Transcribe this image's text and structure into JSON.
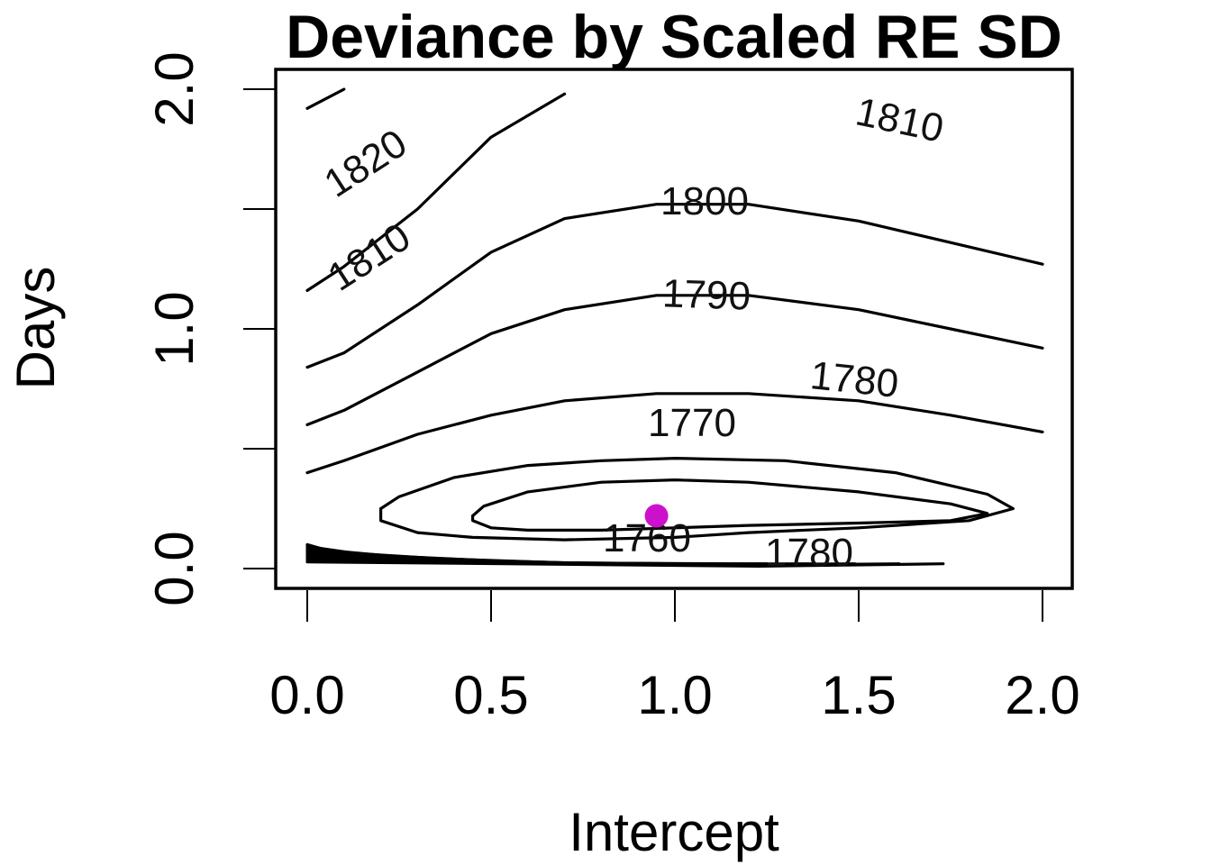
{
  "chart_data": {
    "type": "contour",
    "title": "Deviance by Scaled RE SD",
    "xlabel": "Intercept",
    "ylabel": "Days",
    "xlim": [
      0.0,
      2.0
    ],
    "ylim": [
      0.0,
      2.0
    ],
    "xticks": [
      "0.0",
      "0.5",
      "1.0",
      "1.5",
      "2.0"
    ],
    "yticks": [
      "0.0",
      "",
      "1.0",
      "",
      "2.0"
    ],
    "grid": false,
    "legend": "none",
    "minimum_point": {
      "x": 0.95,
      "y": 0.22,
      "color": "#cc11cc"
    },
    "contour_levels": [
      "1760",
      "1770",
      "1780",
      "1790",
      "1800",
      "1810",
      "1820"
    ],
    "contours": [
      {
        "level": "1760",
        "points": [
          [
            0.45,
            0.22
          ],
          [
            0.48,
            0.26
          ],
          [
            0.6,
            0.32
          ],
          [
            0.8,
            0.36
          ],
          [
            1.0,
            0.37
          ],
          [
            1.2,
            0.36
          ],
          [
            1.5,
            0.32
          ],
          [
            1.75,
            0.27
          ],
          [
            1.85,
            0.23
          ],
          [
            1.75,
            0.2
          ],
          [
            1.5,
            0.19
          ],
          [
            1.2,
            0.18
          ],
          [
            1.0,
            0.17
          ],
          [
            0.8,
            0.16
          ],
          [
            0.6,
            0.16
          ],
          [
            0.5,
            0.17
          ],
          [
            0.45,
            0.2
          ],
          [
            0.45,
            0.22
          ]
        ]
      },
      {
        "level": "1770",
        "points": [
          [
            0.2,
            0.25
          ],
          [
            0.25,
            0.3
          ],
          [
            0.4,
            0.38
          ],
          [
            0.6,
            0.43
          ],
          [
            0.8,
            0.45
          ],
          [
            1.0,
            0.46
          ],
          [
            1.3,
            0.45
          ],
          [
            1.6,
            0.4
          ],
          [
            1.85,
            0.31
          ],
          [
            1.92,
            0.25
          ],
          [
            1.8,
            0.2
          ],
          [
            1.5,
            0.17
          ],
          [
            1.2,
            0.15
          ],
          [
            1.0,
            0.13
          ],
          [
            0.7,
            0.12
          ],
          [
            0.45,
            0.13
          ],
          [
            0.3,
            0.15
          ],
          [
            0.2,
            0.2
          ],
          [
            0.2,
            0.25
          ]
        ]
      },
      {
        "level": "1780",
        "points": [
          [
            0.0,
            0.4
          ],
          [
            0.1,
            0.45
          ],
          [
            0.3,
            0.56
          ],
          [
            0.5,
            0.64
          ],
          [
            0.7,
            0.7
          ],
          [
            0.95,
            0.73
          ],
          [
            1.2,
            0.73
          ],
          [
            1.5,
            0.7
          ],
          [
            1.75,
            0.64
          ],
          [
            2.0,
            0.57
          ]
        ]
      },
      {
        "level": "1790",
        "points": [
          [
            0.0,
            0.6
          ],
          [
            0.1,
            0.66
          ],
          [
            0.3,
            0.82
          ],
          [
            0.5,
            0.98
          ],
          [
            0.7,
            1.08
          ],
          [
            0.95,
            1.14
          ],
          [
            1.2,
            1.14
          ],
          [
            1.5,
            1.08
          ],
          [
            1.75,
            1.0
          ],
          [
            2.0,
            0.92
          ]
        ]
      },
      {
        "level": "1800",
        "points": [
          [
            0.0,
            0.84
          ],
          [
            0.1,
            0.9
          ],
          [
            0.3,
            1.1
          ],
          [
            0.5,
            1.32
          ],
          [
            0.7,
            1.46
          ],
          [
            0.95,
            1.52
          ],
          [
            1.2,
            1.52
          ],
          [
            1.5,
            1.45
          ],
          [
            1.75,
            1.36
          ],
          [
            2.0,
            1.27
          ]
        ]
      },
      {
        "level": "1810",
        "points": [
          [
            0.0,
            1.16
          ],
          [
            0.1,
            1.26
          ],
          [
            0.3,
            1.5
          ],
          [
            0.5,
            1.8
          ],
          [
            0.7,
            1.98
          ]
        ]
      },
      {
        "level": "1820",
        "points": [
          [
            0.0,
            1.92
          ],
          [
            0.1,
            2.0
          ]
        ]
      }
    ]
  }
}
